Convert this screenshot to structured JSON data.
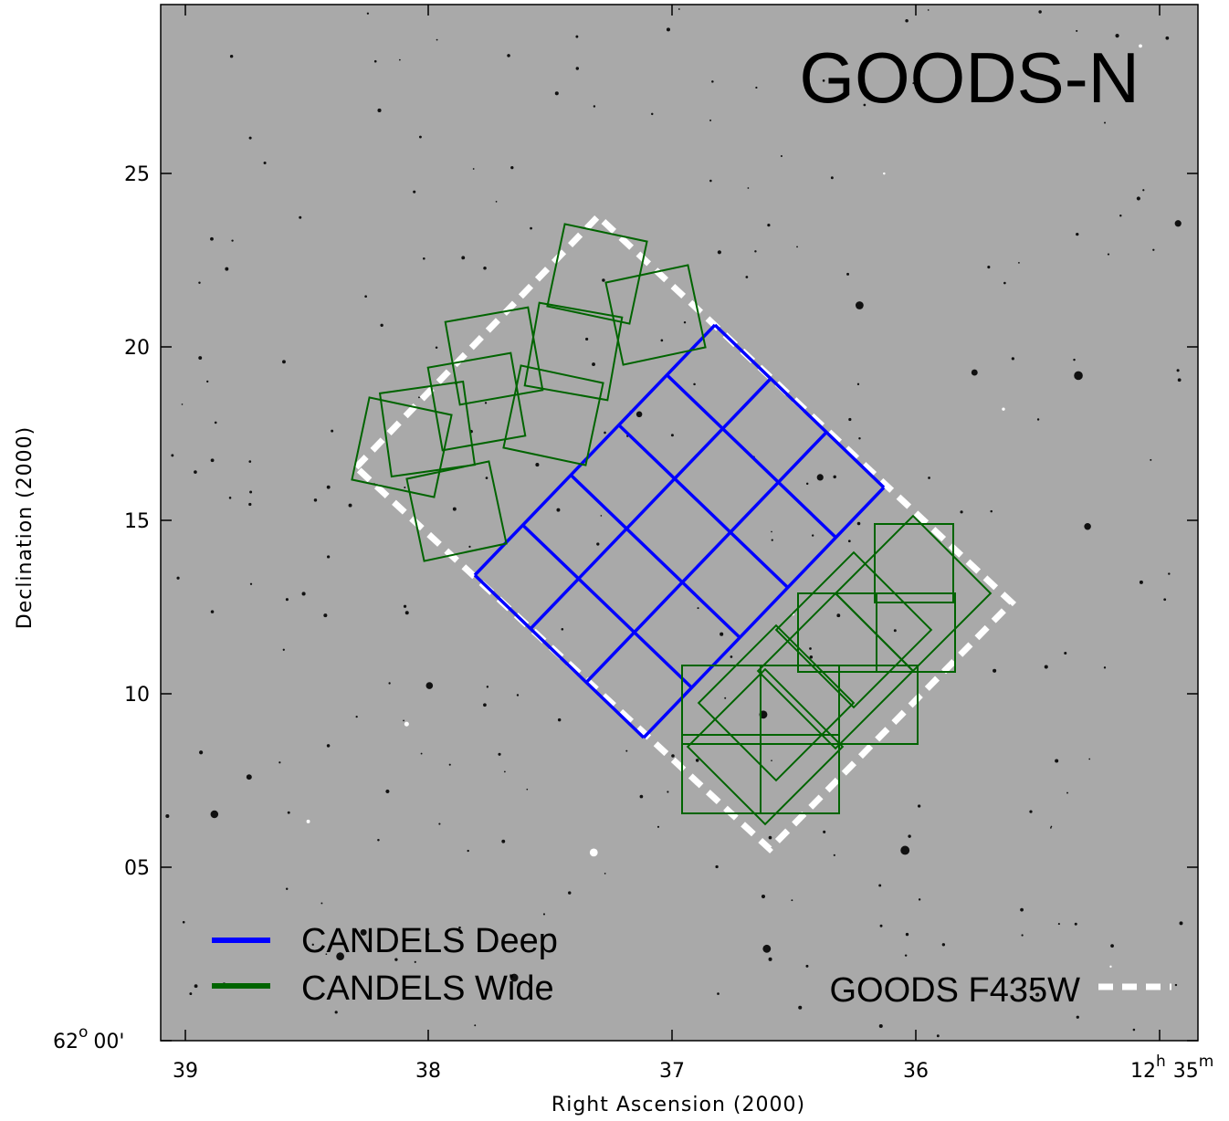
{
  "title": "GOODS-N",
  "x_axis": {
    "label": "Right Ascension (2000)",
    "ticks": [
      "39",
      "38",
      "37",
      "36"
    ],
    "last_tick": [
      "12",
      "h",
      "35",
      "m"
    ]
  },
  "y_axis": {
    "label": "Declination (2000)",
    "ticks": [
      "25",
      "20",
      "15",
      "10",
      "05"
    ],
    "first_tick": [
      "62",
      "o",
      "00'"
    ]
  },
  "legend": {
    "deep": "CANDELS Deep",
    "wide": "CANDELS Wide",
    "goods": "GOODS F435W"
  }
}
